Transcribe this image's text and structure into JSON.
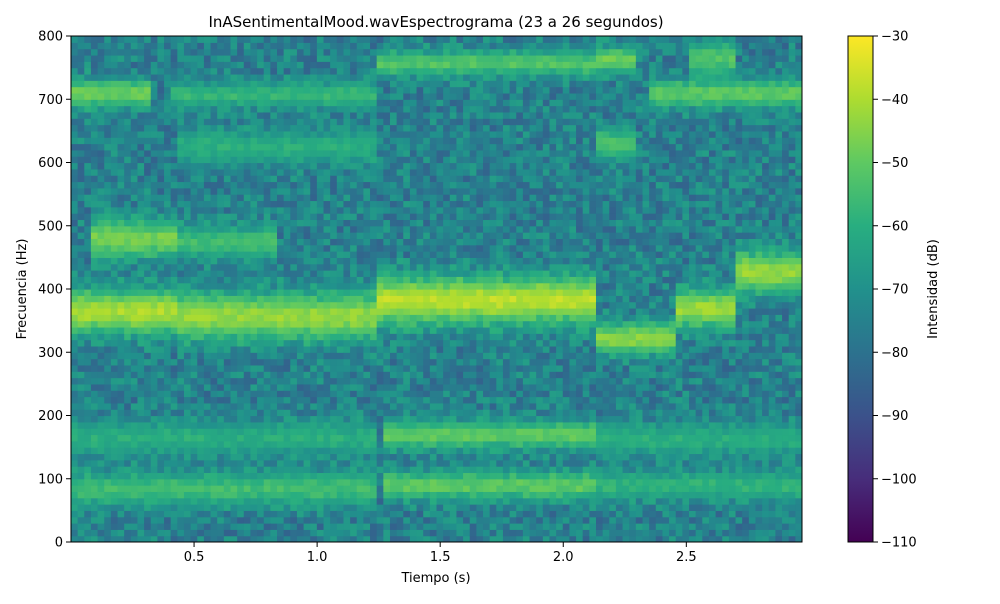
{
  "chart_data": {
    "type": "heatmap",
    "title": "InASentimentalMood.wavEspectrograma (23 a 26 segundos)",
    "xlabel": "Tiempo (s)",
    "ylabel": "Frecuencia (Hz)",
    "colorbar_label": "Intensidad (dB)",
    "colormap": "viridis",
    "xlim": [
      0.0,
      2.97
    ],
    "ylim": [
      0,
      800
    ],
    "clim": [
      -110,
      -30
    ],
    "x_ticks": [
      0.5,
      1.0,
      1.5,
      2.0,
      2.5
    ],
    "x_tick_labels": [
      "0.5",
      "1.0",
      "1.5",
      "2.0",
      "2.5"
    ],
    "y_ticks": [
      0,
      100,
      200,
      300,
      400,
      500,
      600,
      700,
      800
    ],
    "y_tick_labels": [
      "0",
      "100",
      "200",
      "300",
      "400",
      "500",
      "600",
      "700",
      "800"
    ],
    "colorbar_ticks": [
      -30,
      -40,
      -50,
      -60,
      -70,
      -80,
      -90,
      -100,
      -110
    ],
    "colorbar_tick_labels": [
      "−30",
      "−40",
      "−50",
      "−60",
      "−70",
      "−80",
      "−90",
      "−100",
      "−110"
    ],
    "background_db": -75,
    "bands": [
      {
        "t_start": 0.0,
        "t_end": 0.42,
        "f_low": 330,
        "f_high": 400,
        "db": -40
      },
      {
        "t_start": 0.42,
        "t_end": 1.25,
        "f_low": 320,
        "f_high": 395,
        "db": -43
      },
      {
        "t_start": 1.25,
        "t_end": 2.13,
        "f_low": 345,
        "f_high": 420,
        "db": -38
      },
      {
        "t_start": 2.13,
        "t_end": 2.47,
        "f_low": 300,
        "f_high": 345,
        "db": -44
      },
      {
        "t_start": 2.47,
        "t_end": 2.7,
        "f_low": 340,
        "f_high": 400,
        "db": -42
      },
      {
        "t_start": 2.7,
        "t_end": 2.97,
        "f_low": 395,
        "f_high": 460,
        "db": -43
      },
      {
        "t_start": 0.08,
        "t_end": 0.42,
        "f_low": 450,
        "f_high": 510,
        "db": -47
      },
      {
        "t_start": 0.42,
        "t_end": 0.85,
        "f_low": 450,
        "f_high": 500,
        "db": -55
      },
      {
        "t_start": 0.0,
        "t_end": 0.32,
        "f_low": 690,
        "f_high": 730,
        "db": -48
      },
      {
        "t_start": 0.4,
        "t_end": 1.25,
        "f_low": 690,
        "f_high": 725,
        "db": -57
      },
      {
        "t_start": 1.25,
        "t_end": 2.13,
        "f_low": 740,
        "f_high": 775,
        "db": -52
      },
      {
        "t_start": 2.13,
        "t_end": 2.3,
        "f_low": 745,
        "f_high": 780,
        "db": -48
      },
      {
        "t_start": 2.13,
        "t_end": 2.3,
        "f_low": 610,
        "f_high": 650,
        "db": -52
      },
      {
        "t_start": 2.35,
        "t_end": 2.97,
        "f_low": 690,
        "f_high": 730,
        "db": -50
      },
      {
        "t_start": 2.5,
        "t_end": 2.7,
        "f_low": 740,
        "f_high": 790,
        "db": -52
      },
      {
        "t_start": 0.42,
        "t_end": 1.25,
        "f_low": 600,
        "f_high": 650,
        "db": -60
      },
      {
        "t_start": 0.0,
        "t_end": 1.25,
        "f_low": 60,
        "f_high": 110,
        "db": -55
      },
      {
        "t_start": 0.0,
        "t_end": 1.25,
        "f_low": 140,
        "f_high": 190,
        "db": -60
      },
      {
        "t_start": 1.28,
        "t_end": 2.13,
        "f_low": 150,
        "f_high": 190,
        "db": -50
      },
      {
        "t_start": 1.28,
        "t_end": 2.13,
        "f_low": 70,
        "f_high": 110,
        "db": -50
      },
      {
        "t_start": 2.13,
        "t_end": 2.97,
        "f_low": 70,
        "f_high": 110,
        "db": -58
      },
      {
        "t_start": 2.13,
        "t_end": 2.97,
        "f_low": 140,
        "f_high": 185,
        "db": -60
      }
    ]
  }
}
